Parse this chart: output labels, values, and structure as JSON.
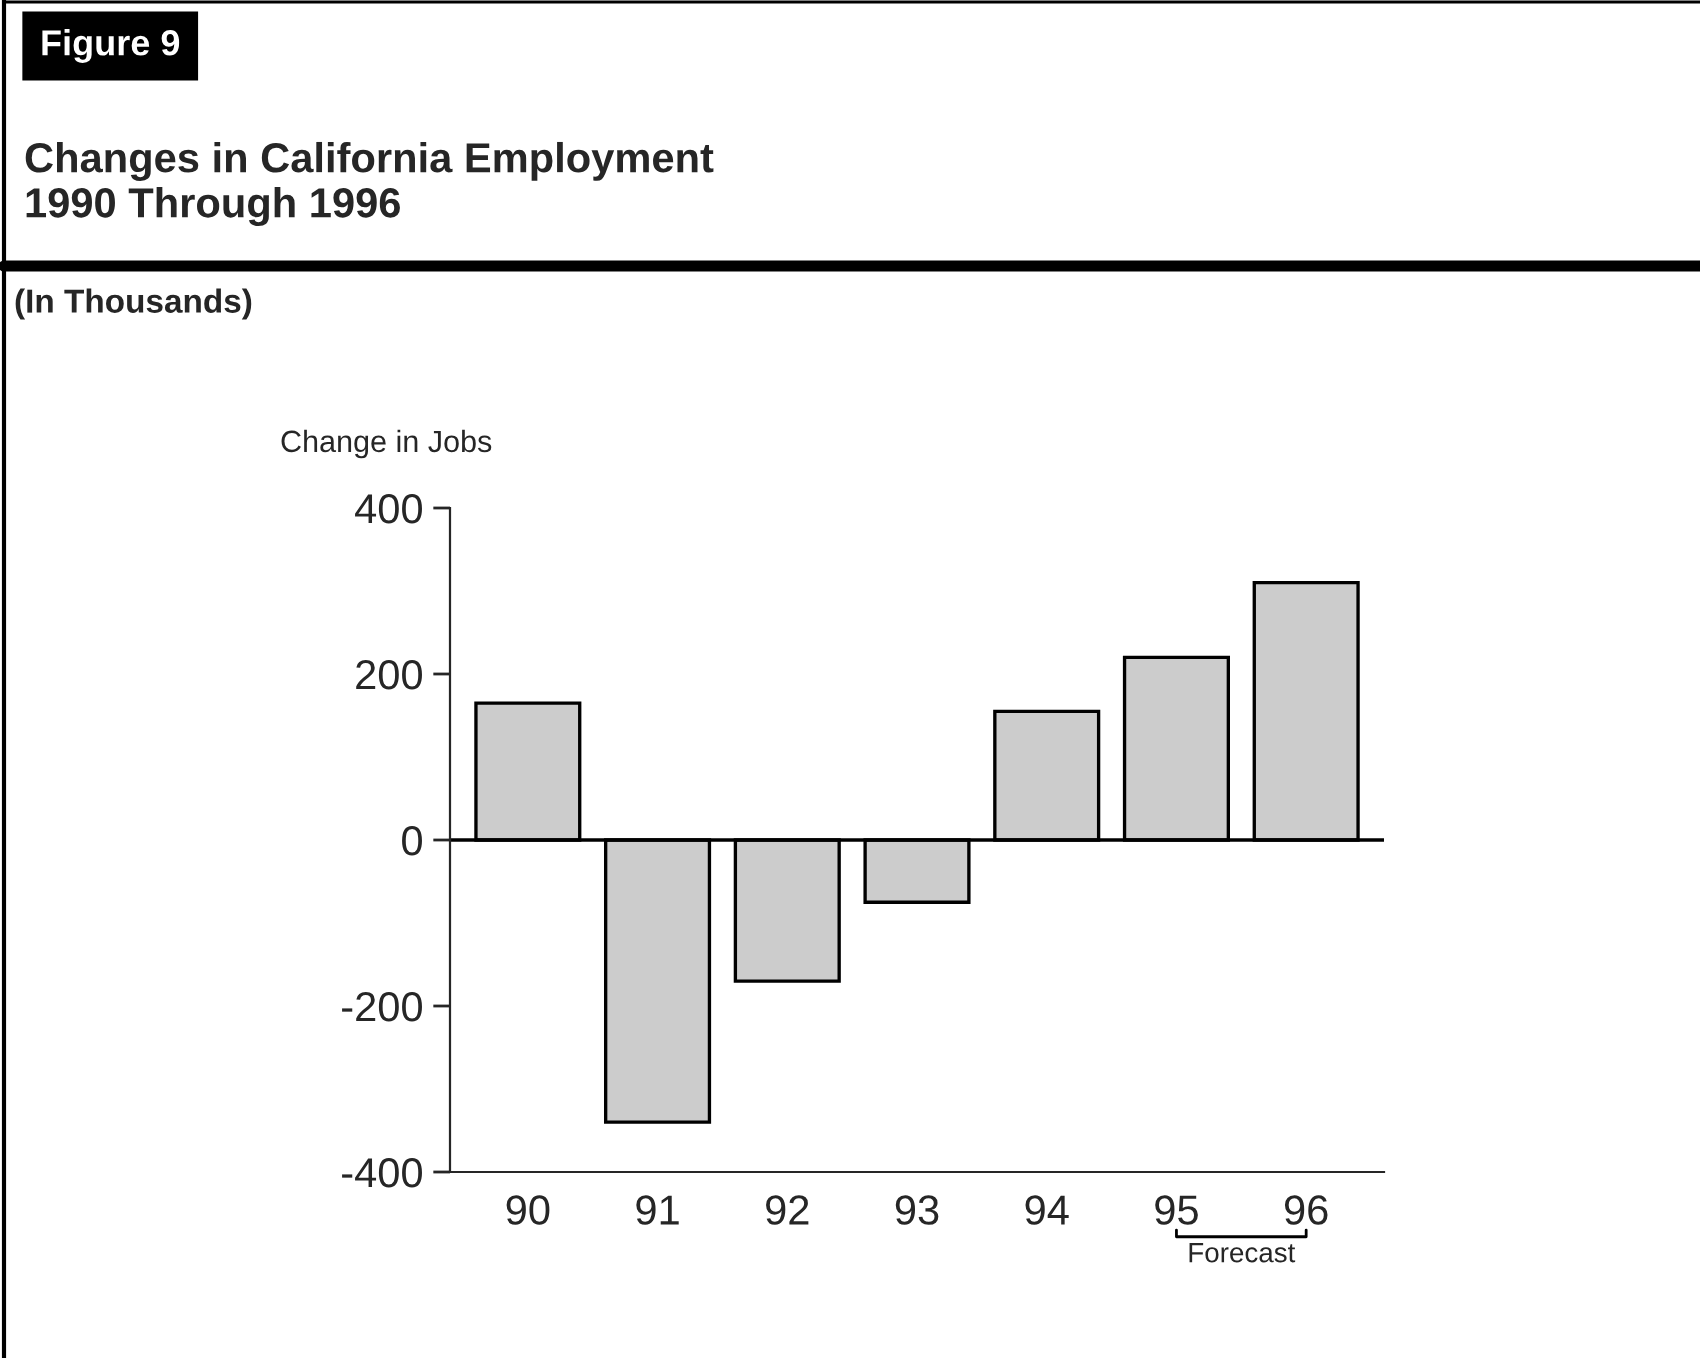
{
  "chart_data": {
    "type": "bar",
    "title": "Changes in California Employment\n1990 Through 1996",
    "subtitle": "(In Thousands)",
    "ylabel": "Change in Jobs",
    "annotations": [
      "Figure 9",
      "Forecast"
    ],
    "categories": [
      "90",
      "91",
      "92",
      "93",
      "94",
      "95",
      "96"
    ],
    "values": [
      165,
      -340,
      -170,
      -75,
      155,
      220,
      310
    ],
    "color": "#cccccc",
    "ylim": [
      -400,
      400
    ],
    "yticks": [
      -400,
      -200,
      0,
      200,
      400
    ],
    "ref_lines": [
      {
        "axis": "y",
        "value": 0,
        "color": "#000000"
      }
    ],
    "grid": false
  }
}
